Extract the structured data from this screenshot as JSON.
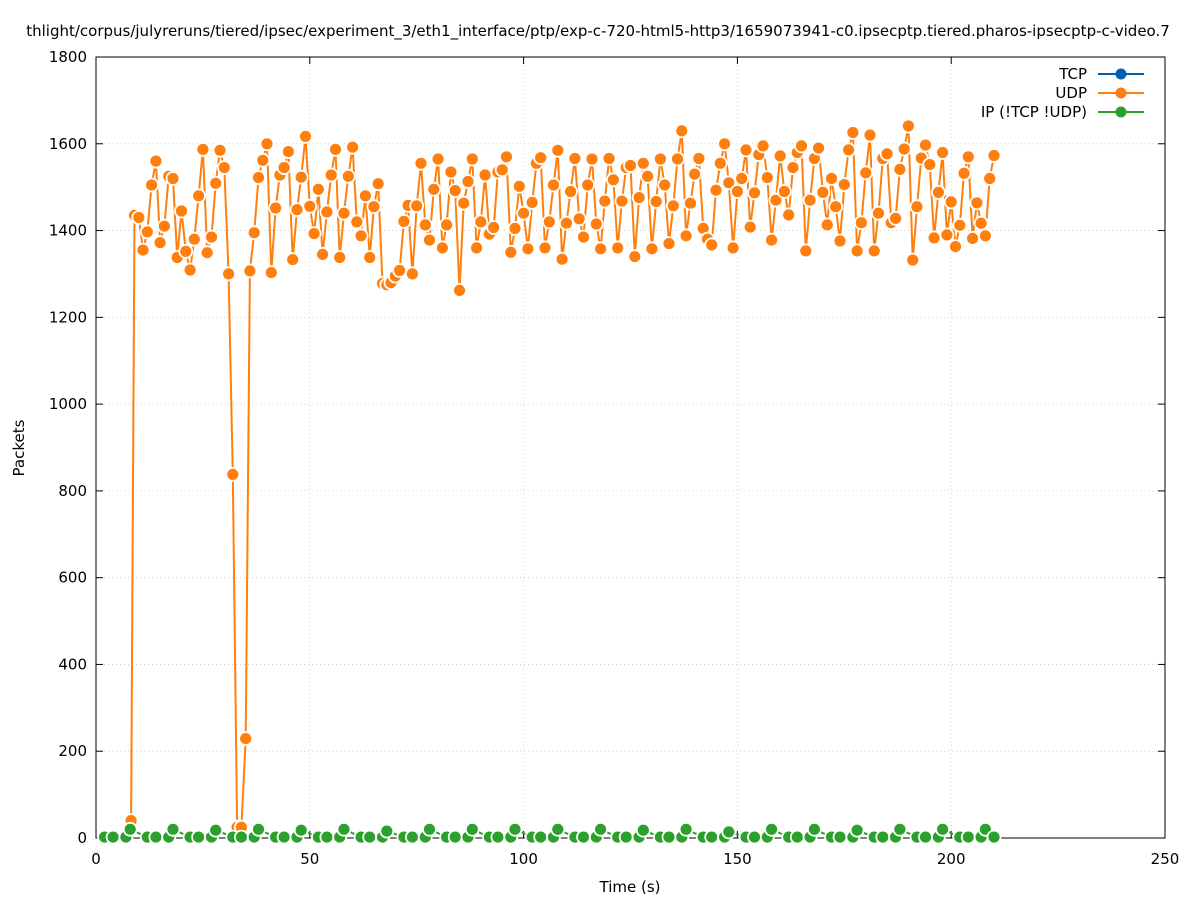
{
  "chart_data": {
    "type": "line",
    "title": "thlight/corpus/julyreruns/tiered/ipsec/experiment_3/eth1_interface/ptp/exp-c-720-html5-http3/1659073941-c0.ipsecptp.tiered.pharos-ipsecptp-c-video.7",
    "xlabel": "Time (s)",
    "ylabel": "Packets",
    "xlim": [
      0,
      250
    ],
    "ylim": [
      0,
      1800
    ],
    "x_ticks": [
      0,
      50,
      100,
      150,
      200,
      250
    ],
    "y_ticks": [
      0,
      200,
      400,
      600,
      800,
      1000,
      1200,
      1400,
      1600,
      1800
    ],
    "x_tick_labels": [
      "0",
      "50",
      "100",
      "150",
      "200",
      "250"
    ],
    "y_tick_labels": [
      "0",
      "200",
      "400",
      "600",
      "800",
      "1000",
      "1200",
      "1400",
      "1600",
      "1800"
    ],
    "grid": true,
    "legend_position": "top-right",
    "series": [
      {
        "name": "TCP",
        "color": "#0060ad",
        "x": [],
        "values": []
      },
      {
        "name": "UDP",
        "color": "#ff7f0e",
        "x": [
          8.2,
          9,
          10,
          11,
          12,
          13,
          14,
          15,
          16,
          17,
          18,
          19,
          20,
          21,
          22,
          23,
          24,
          25,
          26,
          27,
          28,
          29,
          30,
          31,
          32,
          33,
          34,
          35,
          36,
          37,
          38,
          39,
          40,
          41,
          42,
          43,
          44,
          45,
          46,
          47,
          48,
          49,
          50,
          51,
          52,
          53,
          54,
          55,
          56,
          57,
          58,
          59,
          60,
          61,
          62,
          63,
          64,
          65,
          66,
          67,
          68,
          69,
          70,
          71,
          72,
          73,
          74,
          75,
          76,
          77,
          78,
          79,
          80,
          81,
          82,
          83,
          84,
          85,
          86,
          87,
          88,
          89,
          90,
          91,
          92,
          93,
          94,
          95,
          96,
          97,
          98,
          99,
          100,
          101,
          102,
          103,
          104,
          105,
          106,
          107,
          108,
          109,
          110,
          111,
          112,
          113,
          114,
          115,
          116,
          117,
          118,
          119,
          120,
          121,
          122,
          123,
          124,
          125,
          126,
          127,
          128,
          129,
          130,
          131,
          132,
          133,
          134,
          135,
          136,
          137,
          138,
          139,
          140,
          141,
          142,
          143,
          144,
          145,
          146,
          147,
          148,
          149,
          150,
          151,
          152,
          153,
          154,
          155,
          156,
          157,
          158,
          159,
          160,
          161,
          162,
          163,
          164,
          165,
          166,
          167,
          168,
          169,
          170,
          171,
          172,
          173,
          174,
          175,
          176,
          177,
          178,
          179,
          180,
          181,
          182,
          183,
          184,
          185,
          186,
          187,
          188,
          189,
          190,
          191,
          192,
          193,
          194,
          195,
          196,
          197,
          198,
          199,
          200,
          201,
          202,
          203,
          204,
          205,
          206,
          207,
          208,
          209,
          210
        ],
        "values": [
          40,
          1435,
          1430,
          1355,
          1397,
          1505,
          1560,
          1372,
          1410,
          1525,
          1520,
          1338,
          1445,
          1352,
          1309,
          1380,
          1480,
          1587,
          1349,
          1385,
          1509,
          1585,
          1545,
          1300,
          838,
          25,
          25,
          229,
          1307,
          1395,
          1522,
          1562,
          1600,
          1303,
          1452,
          1528,
          1545,
          1582,
          1333,
          1448,
          1523,
          1617,
          1456,
          1393,
          1495,
          1345,
          1443,
          1528,
          1587,
          1338,
          1440,
          1525,
          1592,
          1420,
          1388,
          1480,
          1338,
          1455,
          1508,
          1278,
          1275,
          1280,
          1295,
          1308,
          1421,
          1458,
          1300,
          1457,
          1555,
          1413,
          1378,
          1495,
          1565,
          1360,
          1413,
          1535,
          1492,
          1262,
          1463,
          1513,
          1565,
          1360,
          1420,
          1528,
          1392,
          1407,
          1535,
          1540,
          1570,
          1350,
          1405,
          1502,
          1440,
          1358,
          1465,
          1555,
          1568,
          1360,
          1420,
          1505,
          1585,
          1334,
          1417,
          1490,
          1566,
          1427,
          1385,
          1505,
          1565,
          1415,
          1358,
          1468,
          1566,
          1517,
          1360,
          1468,
          1545,
          1550,
          1340,
          1476,
          1555,
          1525,
          1358,
          1467,
          1565,
          1505,
          1370,
          1457,
          1565,
          1630,
          1388,
          1463,
          1530,
          1566,
          1405,
          1380,
          1367,
          1493,
          1555,
          1600,
          1510,
          1360,
          1490,
          1520,
          1586,
          1408,
          1487,
          1575,
          1595,
          1522,
          1378,
          1470,
          1572,
          1490,
          1436,
          1545,
          1580,
          1595,
          1353,
          1470,
          1566,
          1590,
          1488,
          1413,
          1520,
          1455,
          1376,
          1506,
          1586,
          1626,
          1353,
          1418,
          1533,
          1620,
          1353,
          1440,
          1566,
          1577,
          1418,
          1428,
          1541,
          1588,
          1641,
          1332,
          1455,
          1567,
          1597,
          1552,
          1383,
          1488,
          1580,
          1390,
          1466,
          1363,
          1412,
          1532,
          1570,
          1382,
          1464,
          1417,
          1388,
          1520,
          1573
        ]
      },
      {
        "name": "IP (!TCP  !UDP)",
        "color": "#2ca02c",
        "x": [
          2,
          4,
          7,
          8,
          12,
          14,
          17,
          18,
          22,
          24,
          27,
          28,
          32,
          34,
          37,
          38,
          42,
          44,
          47,
          48,
          52,
          54,
          57,
          58,
          62,
          64,
          67,
          68,
          72,
          74,
          77,
          78,
          82,
          84,
          87,
          88,
          92,
          94,
          97,
          98,
          102,
          104,
          107,
          108,
          112,
          114,
          117,
          118,
          122,
          124,
          127,
          128,
          132,
          134,
          137,
          138,
          142,
          144,
          147,
          148,
          152,
          154,
          157,
          158,
          162,
          164,
          167,
          168,
          172,
          174,
          177,
          178,
          182,
          184,
          187,
          188,
          192,
          194,
          197,
          198,
          202,
          204,
          207,
          208,
          210
        ],
        "values": [
          2,
          2,
          2,
          20,
          2,
          2,
          2,
          20,
          2,
          2,
          2,
          18,
          2,
          2,
          2,
          20,
          2,
          2,
          2,
          18,
          2,
          2,
          2,
          20,
          2,
          2,
          2,
          16,
          2,
          2,
          2,
          20,
          2,
          2,
          2,
          20,
          2,
          2,
          2,
          20,
          2,
          2,
          2,
          20,
          2,
          2,
          2,
          20,
          2,
          2,
          2,
          18,
          2,
          2,
          2,
          20,
          2,
          2,
          2,
          14,
          2,
          2,
          2,
          20,
          2,
          2,
          2,
          20,
          2,
          2,
          2,
          18,
          2,
          2,
          2,
          20,
          2,
          2,
          2,
          20,
          2,
          2,
          2,
          20,
          2
        ]
      }
    ]
  }
}
